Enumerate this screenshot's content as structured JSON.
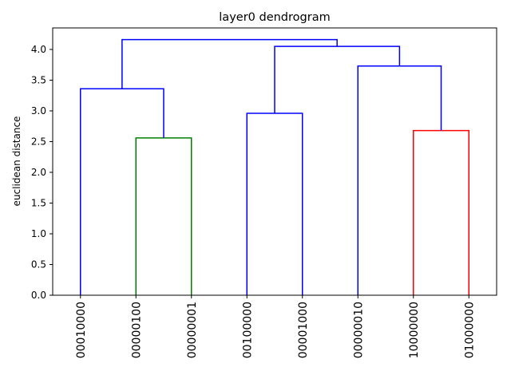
{
  "chart_data": {
    "type": "dendrogram",
    "title": "layer0 dendrogram",
    "xlabel": "",
    "ylabel": "euclidean distance",
    "ylim": [
      0,
      4.35
    ],
    "y_ticks": [
      "0.0",
      "0.5",
      "1.0",
      "1.5",
      "2.0",
      "2.5",
      "3.0",
      "3.5",
      "4.0"
    ],
    "y_tick_values": [
      0,
      0.5,
      1.0,
      1.5,
      2.0,
      2.5,
      3.0,
      3.5,
      4.0
    ],
    "leaves": [
      "00010000",
      "00000100",
      "00000001",
      "00100000",
      "00001000",
      "00000010",
      "10000000",
      "01000000"
    ],
    "grid": false,
    "colors": {
      "blue": "#0000ff",
      "green": "#008000",
      "red": "#ff0000",
      "axis": "#000000"
    },
    "links": [
      {
        "left": "00000100",
        "right": "00000001",
        "height": 2.56,
        "color": "green"
      },
      {
        "left": "10000000",
        "right": "01000000",
        "height": 2.68,
        "color": "red"
      },
      {
        "left": "00100000",
        "right": "00001000",
        "height": 2.96,
        "color": "blue"
      },
      {
        "left": "00010000",
        "right": "cluster(00000100,00000001)",
        "height": 3.36,
        "color": "blue"
      },
      {
        "left": "00000010",
        "right": "cluster(10000000,01000000)",
        "height": 3.73,
        "color": "blue"
      },
      {
        "left": "cluster(00100000,00001000)",
        "right": "cluster(00000010,10000000,01000000)",
        "height": 4.05,
        "color": "blue"
      },
      {
        "left": "cluster(00010000,00000100,00000001)",
        "right": "cluster(00100000,00001000,00000010,10000000,01000000)",
        "height": 4.16,
        "color": "blue"
      }
    ]
  }
}
